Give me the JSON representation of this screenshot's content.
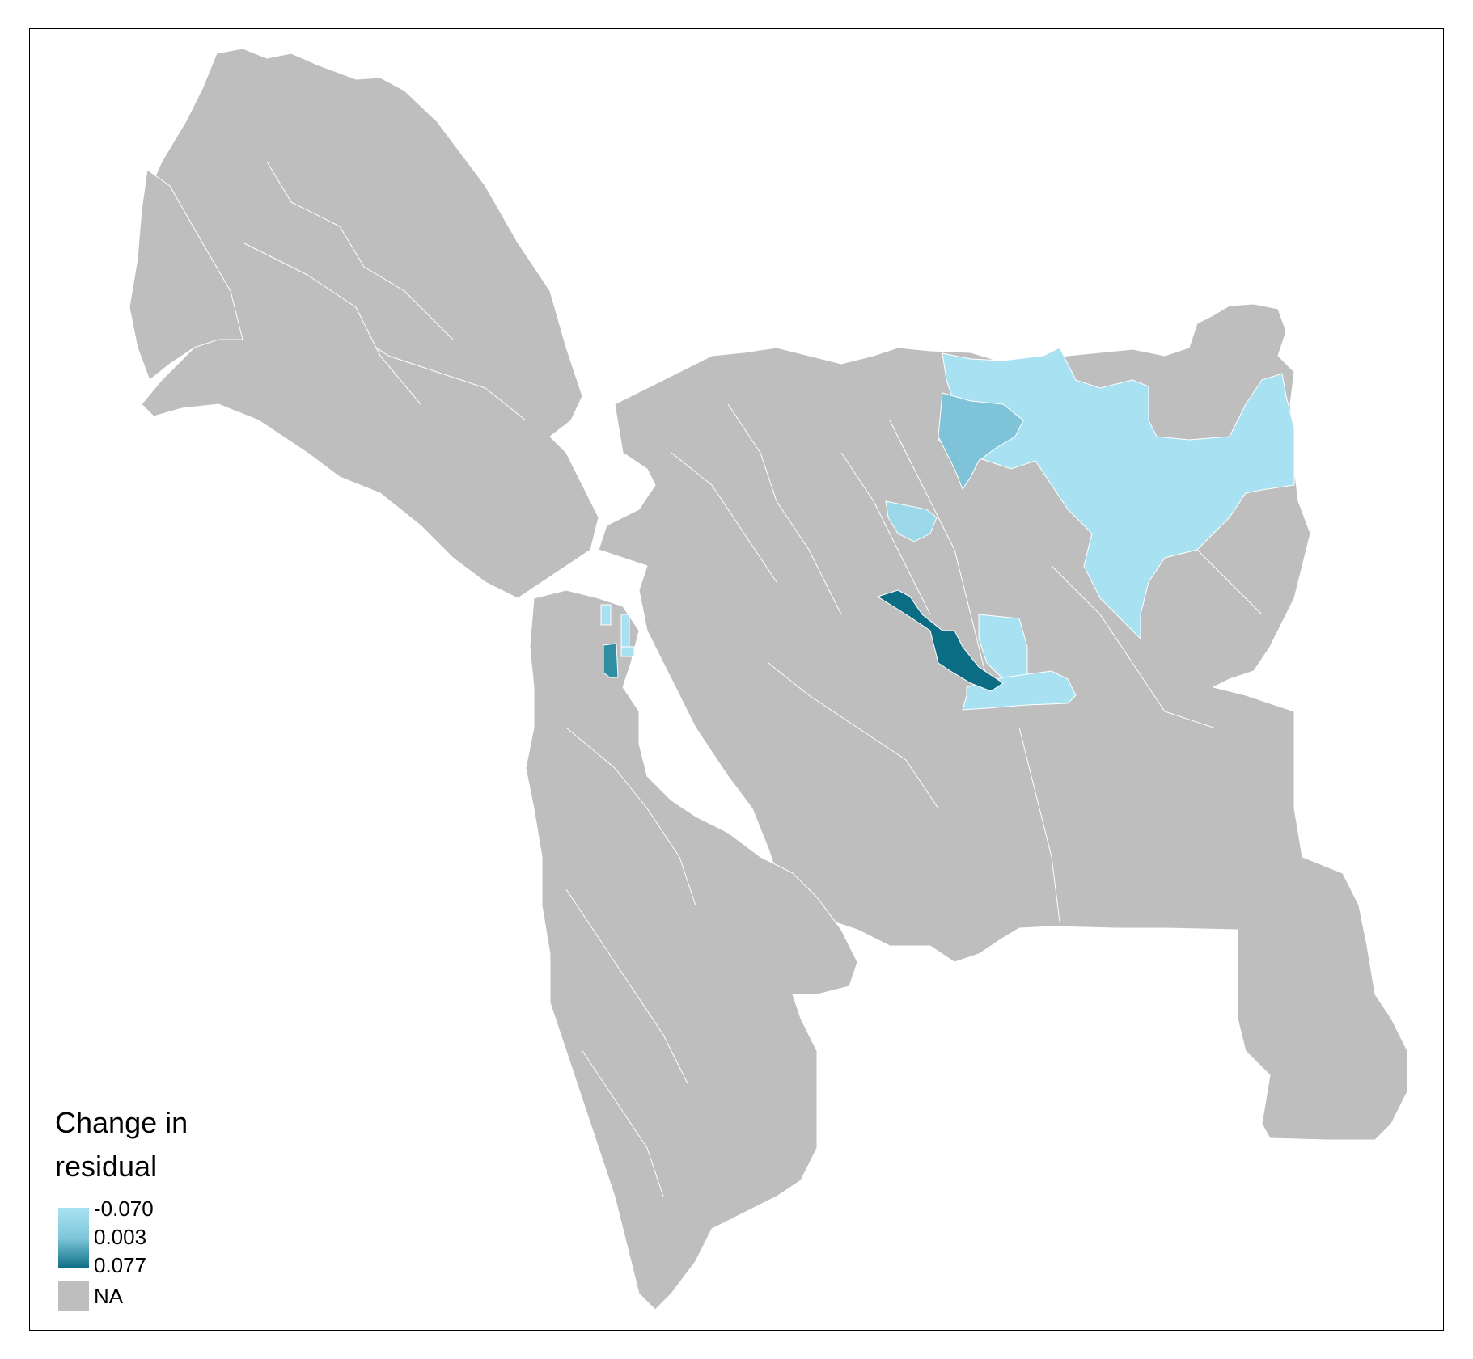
{
  "legend": {
    "title_line1": "Change in",
    "title_line2": "residual",
    "values": [
      "-0.070",
      "0.003",
      "0.077"
    ],
    "na_label": "NA",
    "gradient_colors": [
      "#a8e2f2",
      "#7fc6da",
      "#0b6d83"
    ],
    "na_color": "#bebebe"
  },
  "map_colors": {
    "land": "#bebebe",
    "border": "#ffffff",
    "light": "#a8e2f2",
    "light_mid": "#9ad8ea",
    "mid": "#7ec3d8",
    "dark": "#0b6d83",
    "dark_mid": "#2f8ea2"
  }
}
